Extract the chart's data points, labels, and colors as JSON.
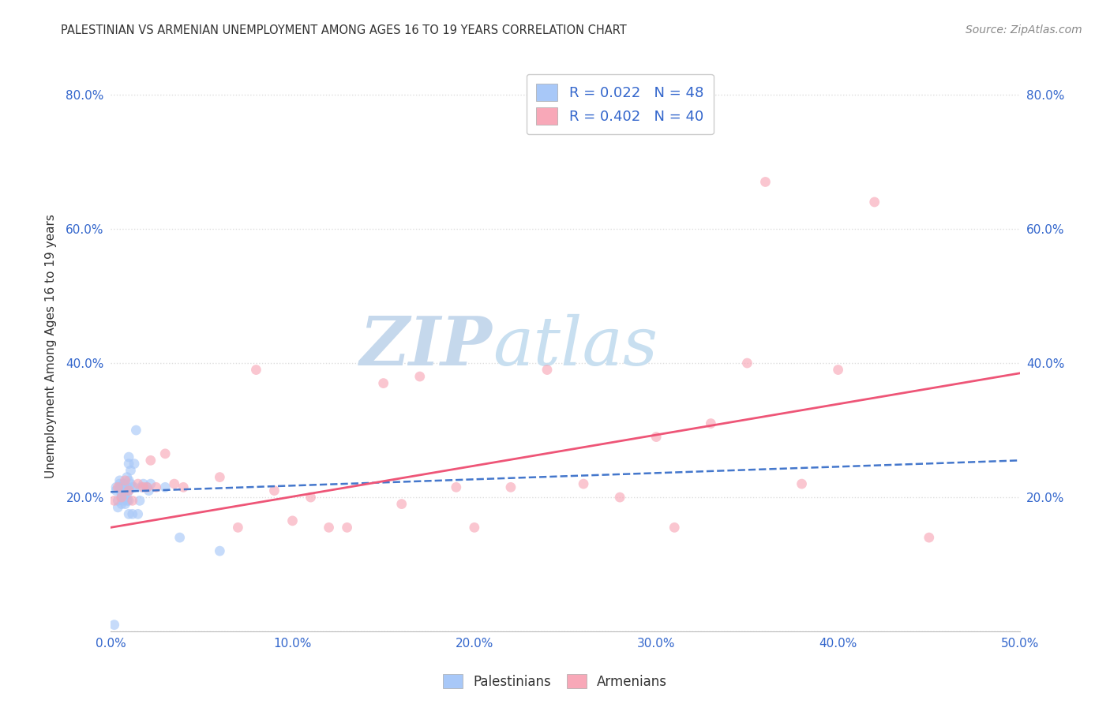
{
  "title": "PALESTINIAN VS ARMENIAN UNEMPLOYMENT AMONG AGES 16 TO 19 YEARS CORRELATION CHART",
  "source": "Source: ZipAtlas.com",
  "ylabel": "Unemployment Among Ages 16 to 19 years",
  "xlim": [
    0.0,
    0.5
  ],
  "ylim": [
    0.0,
    0.85
  ],
  "xticks": [
    0.0,
    0.1,
    0.2,
    0.3,
    0.4,
    0.5
  ],
  "yticks": [
    0.0,
    0.2,
    0.4,
    0.6,
    0.8
  ],
  "xtick_labels": [
    "0.0%",
    "10.0%",
    "20.0%",
    "30.0%",
    "40.0%",
    "50.0%"
  ],
  "ytick_labels_left": [
    "",
    "20.0%",
    "40.0%",
    "60.0%",
    "80.0%"
  ],
  "ytick_labels_right": [
    "",
    "20.0%",
    "40.0%",
    "60.0%",
    "80.0%"
  ],
  "blue_color": "#a8c8f8",
  "pink_color": "#f8a8b8",
  "blue_line_color": "#4477cc",
  "pink_line_color": "#ee5577",
  "legend_text_color": "#3366cc",
  "title_color": "#333333",
  "source_color": "#888888",
  "watermark_color": "#dce8f5",
  "legend_r1": "R = 0.022",
  "legend_n1": "N = 48",
  "legend_r2": "R = 0.402",
  "legend_n2": "N = 40",
  "palestinians_x": [
    0.002,
    0.003,
    0.003,
    0.004,
    0.004,
    0.005,
    0.005,
    0.005,
    0.006,
    0.006,
    0.006,
    0.006,
    0.007,
    0.007,
    0.007,
    0.007,
    0.007,
    0.008,
    0.008,
    0.008,
    0.008,
    0.009,
    0.009,
    0.009,
    0.009,
    0.01,
    0.01,
    0.01,
    0.01,
    0.01,
    0.01,
    0.011,
    0.011,
    0.012,
    0.012,
    0.013,
    0.013,
    0.014,
    0.015,
    0.016,
    0.017,
    0.018,
    0.02,
    0.021,
    0.022,
    0.03,
    0.038,
    0.06
  ],
  "palestinians_y": [
    0.01,
    0.21,
    0.215,
    0.195,
    0.185,
    0.215,
    0.22,
    0.225,
    0.19,
    0.2,
    0.205,
    0.215,
    0.195,
    0.2,
    0.205,
    0.215,
    0.22,
    0.19,
    0.2,
    0.21,
    0.218,
    0.195,
    0.205,
    0.215,
    0.23,
    0.175,
    0.195,
    0.21,
    0.225,
    0.25,
    0.26,
    0.22,
    0.24,
    0.175,
    0.215,
    0.215,
    0.25,
    0.3,
    0.175,
    0.195,
    0.215,
    0.22,
    0.215,
    0.21,
    0.22,
    0.215,
    0.14,
    0.12
  ],
  "armenians_x": [
    0.002,
    0.004,
    0.006,
    0.008,
    0.01,
    0.012,
    0.015,
    0.018,
    0.02,
    0.022,
    0.025,
    0.03,
    0.035,
    0.04,
    0.06,
    0.07,
    0.08,
    0.09,
    0.1,
    0.11,
    0.12,
    0.13,
    0.15,
    0.16,
    0.17,
    0.19,
    0.2,
    0.22,
    0.24,
    0.26,
    0.28,
    0.3,
    0.31,
    0.33,
    0.35,
    0.36,
    0.38,
    0.4,
    0.42,
    0.45
  ],
  "armenians_y": [
    0.195,
    0.215,
    0.2,
    0.225,
    0.21,
    0.195,
    0.22,
    0.215,
    0.215,
    0.255,
    0.215,
    0.265,
    0.22,
    0.215,
    0.23,
    0.155,
    0.39,
    0.21,
    0.165,
    0.2,
    0.155,
    0.155,
    0.37,
    0.19,
    0.38,
    0.215,
    0.155,
    0.215,
    0.39,
    0.22,
    0.2,
    0.29,
    0.155,
    0.31,
    0.4,
    0.67,
    0.22,
    0.39,
    0.64,
    0.14
  ],
  "blue_trend_x": [
    0.0,
    0.5
  ],
  "blue_trend_y": [
    0.208,
    0.255
  ],
  "pink_trend_x": [
    0.0,
    0.5
  ],
  "pink_trend_y": [
    0.155,
    0.385
  ],
  "background_color": "#ffffff",
  "grid_color": "#dddddd",
  "marker_size": 85,
  "marker_alpha": 0.65
}
